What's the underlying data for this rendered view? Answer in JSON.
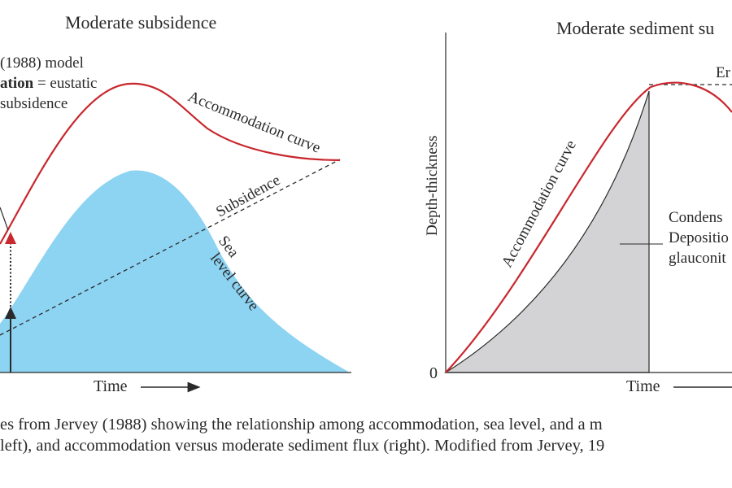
{
  "left_panel": {
    "title": "Moderate subsidence",
    "model_note": {
      "line1": "(1988) model",
      "line2_bold": "ation",
      "line2_rest": " = eustatic",
      "line3": "subsidence"
    },
    "labels": {
      "accommodation_curve": "Accommodation curve",
      "subsidence": "Subsidence",
      "sea_level_line1": "Sea",
      "sea_level_line2": "level curve",
      "x_axis": "Time"
    }
  },
  "right_panel": {
    "title": "Moderate sediment su",
    "labels": {
      "y_axis": "Depth-thickness",
      "origin": "0",
      "x_axis": "Time",
      "accommodation_curve": "Accommodation curve",
      "top_right": "Er",
      "condensed_line1": "Condens",
      "condensed_line2": "Depositio",
      "condensed_line3": "glauconit"
    }
  },
  "caption": {
    "line1": "es from Jervey (1988) showing the relationship among accommodation, sea level, and a m",
    "line2": "left), and accommodation versus moderate sediment flux (right). Modified from Jervey, 19"
  },
  "colors": {
    "accommodation": "#c8282e",
    "sea_fill": "#8dd3f2",
    "sediment_fill": "#d3d3d5",
    "ink": "#2a2a2a"
  }
}
